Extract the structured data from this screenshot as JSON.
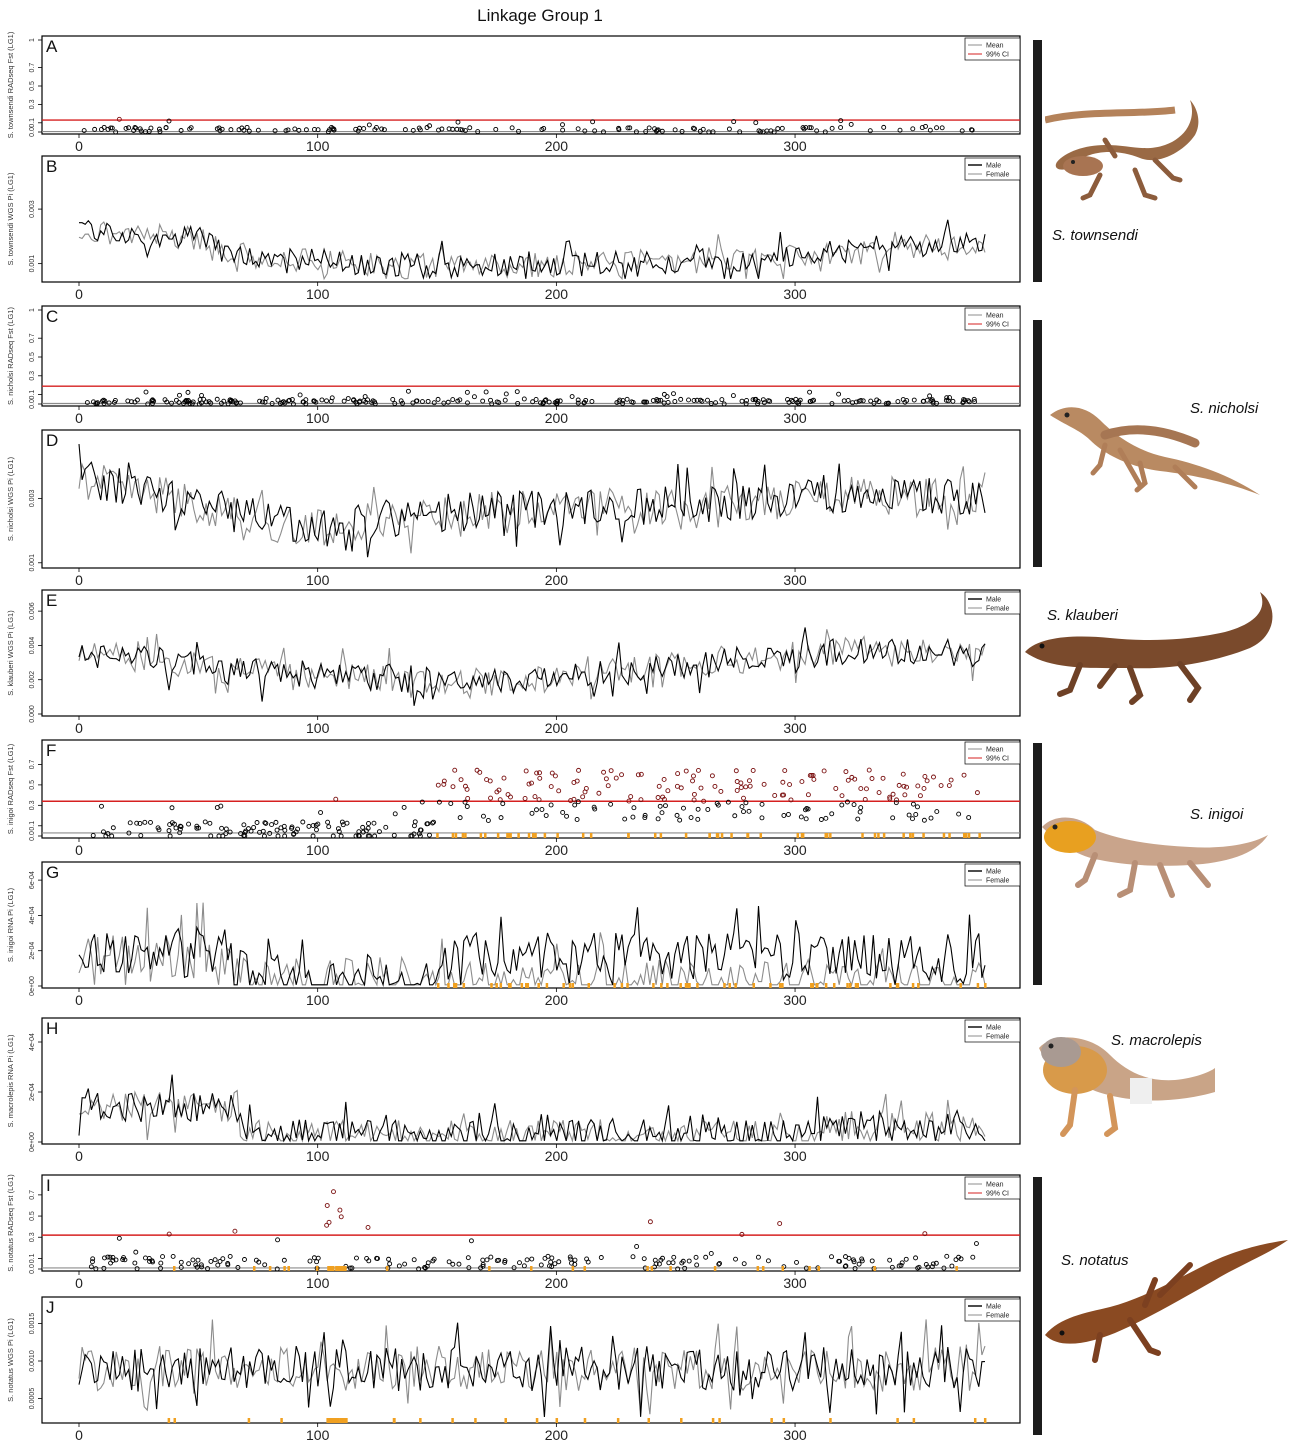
{
  "title": "Linkage Group 1",
  "colors": {
    "black": "#000000",
    "gray": "#8c8c8c",
    "red": "#d62020",
    "orange": "#f0a020"
  },
  "species": [
    {
      "label": "S. townsendi"
    },
    {
      "label": "S. nicholsi"
    },
    {
      "label": "S. klauberi"
    },
    {
      "label": "S. inigoi"
    },
    {
      "label": "S. macrolepis"
    },
    {
      "label": "S. notatus"
    }
  ],
  "chart_data": [
    {
      "letter": "A",
      "type": "scatter",
      "ylabel": "S. townsendi RADseq Fst (LG1)",
      "xlim": [
        0,
        380
      ],
      "ylim": [
        0,
        1
      ],
      "x_ticks": [
        0,
        100,
        200,
        300
      ],
      "y_ticks": [
        "0.0",
        "0.1",
        "0.3",
        "0.5",
        "0.7",
        "1"
      ],
      "y_tick_values": [
        0,
        0.1,
        0.3,
        0.5,
        0.7,
        1
      ],
      "legend": [
        "Mean",
        "99% CI"
      ],
      "mean": 0.005,
      "ci": 0.13,
      "trend": "flat",
      "n_points": 145,
      "seed": 11,
      "orange": false
    },
    {
      "letter": "B",
      "type": "line",
      "ylabel": "S. townsendi WGS Pi (LG1)",
      "xlim": [
        0,
        380
      ],
      "ylim": [
        0.0004,
        0.0048
      ],
      "x_ticks": [
        0,
        100,
        200,
        300
      ],
      "y_ticks": [
        "0.001",
        "0.003"
      ],
      "y_tick_values": [
        0.001,
        0.003
      ],
      "legend": [
        "Male",
        "Female"
      ],
      "profile": [
        [
          0,
          0.0022
        ],
        [
          55,
          0.0019
        ],
        [
          60,
          0.0013
        ],
        [
          100,
          0.0011
        ],
        [
          150,
          0.0009
        ],
        [
          230,
          0.001
        ],
        [
          290,
          0.0012
        ],
        [
          330,
          0.0015
        ],
        [
          380,
          0.0018
        ]
      ],
      "noise": 0.00045,
      "seed": 21
    },
    {
      "letter": "C",
      "type": "scatter",
      "ylabel": "S. nicholsi RADseq Fst (LG1)",
      "xlim": [
        0,
        380
      ],
      "ylim": [
        0,
        1
      ],
      "x_ticks": [
        0,
        100,
        200,
        300
      ],
      "y_ticks": [
        "0.0",
        "0.1",
        "0.3",
        "0.5",
        "0.7",
        "1"
      ],
      "y_tick_values": [
        0,
        0.1,
        0.3,
        0.5,
        0.7,
        1
      ],
      "legend": [
        "Mean",
        "99% CI"
      ],
      "mean": 0.005,
      "ci": 0.19,
      "trend": "flat",
      "n_points": 260,
      "seed": 31,
      "orange": false
    },
    {
      "letter": "D",
      "type": "line",
      "ylabel": "S. nicholsi WGS Pi (LG1)",
      "xlim": [
        0,
        380
      ],
      "ylim": [
        0.0009,
        0.005
      ],
      "x_ticks": [
        0,
        100,
        200,
        300
      ],
      "y_ticks": [
        "0.001",
        "0.003"
      ],
      "y_tick_values": [
        0.001,
        0.003
      ],
      "legend": [],
      "profile": [
        [
          0,
          0.0036
        ],
        [
          40,
          0.003
        ],
        [
          95,
          0.002
        ],
        [
          140,
          0.0025
        ],
        [
          200,
          0.0027
        ],
        [
          260,
          0.0028
        ],
        [
          330,
          0.0031
        ],
        [
          380,
          0.003
        ]
      ],
      "noise": 0.0006,
      "seed": 41
    },
    {
      "letter": "E",
      "type": "line",
      "ylabel": "S. klauberi WGS Pi (LG1)",
      "xlim": [
        0,
        380
      ],
      "ylim": [
        0,
        0.007
      ],
      "x_ticks": [
        0,
        100,
        200,
        300
      ],
      "y_ticks": [
        "0.000",
        "0.002",
        "0.004",
        "0.006"
      ],
      "y_tick_values": [
        0,
        0.002,
        0.004,
        0.006
      ],
      "legend": [
        "Male",
        "Female"
      ],
      "profile": [
        [
          0,
          0.0035
        ],
        [
          40,
          0.003
        ],
        [
          60,
          0.0025
        ],
        [
          100,
          0.0023
        ],
        [
          180,
          0.0018
        ],
        [
          250,
          0.0028
        ],
        [
          330,
          0.0038
        ],
        [
          380,
          0.0035
        ]
      ],
      "noise": 0.0008,
      "seed": 51
    },
    {
      "letter": "F",
      "type": "scatter",
      "ylabel": "S. inigoi RADseq Fst (LG1)",
      "xlim": [
        0,
        380
      ],
      "ylim": [
        0,
        0.9
      ],
      "x_ticks": [
        0,
        100,
        200,
        300
      ],
      "y_ticks": [
        "0.0",
        "0.1",
        "0.3",
        "0.5",
        "0.7"
      ],
      "y_tick_values": [
        0,
        0.1,
        0.3,
        0.5,
        0.7
      ],
      "legend": [
        "Mean",
        "99% CI"
      ],
      "mean": 0.03,
      "ci": 0.34,
      "trend": "inigoi",
      "n_points": 330,
      "seed": 61,
      "orange": true
    },
    {
      "letter": "G",
      "type": "line",
      "ylabel": "S. inigoi RNA Pi (LG1)",
      "xlim": [
        0,
        380
      ],
      "ylim": [
        0,
        0.00068
      ],
      "x_ticks": [
        0,
        100,
        200,
        300
      ],
      "y_ticks": [
        "0e+00",
        "2e-04",
        "4e-04",
        "6e-04"
      ],
      "y_tick_values": [
        0,
        0.0002,
        0.0004,
        0.0006
      ],
      "legend": [
        "Male",
        "Female"
      ],
      "profile": [
        [
          0,
          0.00016
        ],
        [
          60,
          0.0002
        ],
        [
          70,
          4e-05
        ],
        [
          150,
          2e-05
        ],
        [
          155,
          0.00018
        ],
        [
          380,
          0.00016
        ]
      ],
      "female_profile": [
        [
          0,
          0.00014
        ],
        [
          60,
          0.00018
        ],
        [
          70,
          3e-05
        ],
        [
          150,
          1e-05
        ],
        [
          380,
          1e-05
        ]
      ],
      "noise": 0.00014,
      "seed": 71,
      "orange": true
    },
    {
      "letter": "H",
      "type": "line",
      "ylabel": "S. macrolepis RNA Pi (LG1)",
      "xlim": [
        0,
        380
      ],
      "ylim": [
        0,
        0.00048
      ],
      "x_ticks": [
        0,
        100,
        200,
        300
      ],
      "y_ticks": [
        "0e+00",
        "2e-04",
        "4e-04"
      ],
      "y_tick_values": [
        0,
        0.0002,
        0.0004
      ],
      "legend": [
        "Male",
        "Female"
      ],
      "profile": [
        [
          0,
          0.00014
        ],
        [
          65,
          0.00014
        ],
        [
          70,
          3e-05
        ],
        [
          300,
          3e-05
        ],
        [
          320,
          7e-05
        ],
        [
          380,
          5e-05
        ]
      ],
      "noise": 6e-05,
      "seed": 81
    },
    {
      "letter": "I",
      "type": "scatter",
      "ylabel": "S. notatus RADseq Fst (LG1)",
      "xlim": [
        0,
        380
      ],
      "ylim": [
        0,
        0.85
      ],
      "x_ticks": [
        0,
        100,
        200,
        300
      ],
      "y_ticks": [
        "0.0",
        "0.1",
        "0.3",
        "0.5",
        "0.7"
      ],
      "y_tick_values": [
        0,
        0.1,
        0.3,
        0.5,
        0.7
      ],
      "legend": [
        "Mean",
        "99% CI"
      ],
      "mean": 0.01,
      "ci": 0.32,
      "trend": "notatus",
      "n_points": 200,
      "seed": 91,
      "orange": true
    },
    {
      "letter": "J",
      "type": "line",
      "ylabel": "S. notatus WGS Pi (LG1)",
      "xlim": [
        0,
        380
      ],
      "ylim": [
        0.0002,
        0.0018
      ],
      "x_ticks": [
        0,
        100,
        200,
        300
      ],
      "y_ticks": [
        "0.0005",
        "0.0010",
        "0.0015"
      ],
      "y_tick_values": [
        0.0005,
        0.001,
        0.0015
      ],
      "legend": [
        "Male",
        "Female"
      ],
      "profile": [
        [
          0,
          0.0009
        ],
        [
          380,
          0.0009
        ]
      ],
      "noise": 0.0003,
      "seed": 101,
      "orange": true
    }
  ]
}
